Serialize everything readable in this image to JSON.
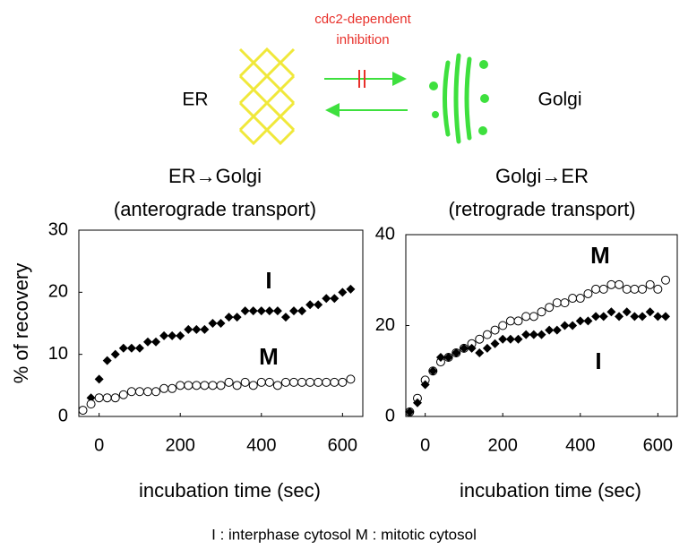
{
  "diagram": {
    "inhibition": [
      "cdc2-dependent",
      "inhibition"
    ],
    "left": "ER",
    "right": "Golgi"
  },
  "caption": "I : interphase cytosol  M : mitotic cytosol",
  "chart_data": [
    {
      "type": "scatter",
      "title": [
        "ER→Golgi",
        "(anterograde transport)"
      ],
      "x_label": "incubation time (sec)",
      "y_label": "% of recovery",
      "xlim": [
        -50,
        650
      ],
      "xticks": [
        0,
        200,
        400,
        600
      ],
      "ylim": [
        0,
        30
      ],
      "yticks": [
        0,
        10,
        20,
        30
      ],
      "x": [
        -40,
        -20,
        0,
        20,
        40,
        60,
        80,
        100,
        120,
        140,
        160,
        180,
        200,
        220,
        240,
        260,
        280,
        300,
        320,
        340,
        360,
        380,
        400,
        420,
        440,
        460,
        480,
        500,
        520,
        540,
        560,
        580,
        600,
        620
      ],
      "series": [
        {
          "name": "I",
          "color": "#000000",
          "marker": "diamond",
          "values": [
            1,
            3,
            6,
            9,
            10,
            11,
            11,
            11,
            12,
            12,
            13,
            13,
            13,
            14,
            14,
            14,
            15,
            15,
            16,
            16,
            17,
            17,
            17,
            17,
            17,
            16,
            17,
            17,
            18,
            18,
            19,
            19,
            20,
            20.5
          ]
        },
        {
          "name": "M",
          "color": "#000000",
          "marker": "circle",
          "values": [
            1,
            2,
            3,
            3,
            3,
            3.5,
            4,
            4,
            4,
            4,
            4.5,
            4.5,
            5,
            5,
            5,
            5,
            5,
            5,
            5.5,
            5,
            5.5,
            5,
            5.5,
            5.5,
            5,
            5.5,
            5.5,
            5.5,
            5.5,
            5.5,
            5.5,
            5.5,
            5.5,
            6
          ]
        }
      ]
    },
    {
      "type": "scatter",
      "title": [
        "Golgi→ER",
        "(retrograde transport)"
      ],
      "x_label": "incubation time (sec)",
      "xlim": [
        -50,
        650
      ],
      "xticks": [
        0,
        200,
        400,
        600
      ],
      "ylim": [
        0,
        40
      ],
      "yticks": [
        0,
        20,
        40
      ],
      "x": [
        -40,
        -20,
        0,
        20,
        40,
        60,
        80,
        100,
        120,
        140,
        160,
        180,
        200,
        220,
        240,
        260,
        280,
        300,
        320,
        340,
        360,
        380,
        400,
        420,
        440,
        460,
        480,
        500,
        520,
        540,
        560,
        580,
        600,
        620
      ],
      "series": [
        {
          "name": "M",
          "color": "#000000",
          "marker": "circle",
          "values": [
            1,
            4,
            8,
            10,
            12,
            13,
            14,
            15,
            16,
            17,
            18,
            19,
            20,
            21,
            21,
            22,
            22,
            23,
            24,
            25,
            25,
            26,
            26,
            27,
            28,
            28,
            29,
            29,
            28,
            28,
            28,
            29,
            28,
            30
          ]
        },
        {
          "name": "I",
          "color": "#000000",
          "marker": "diamond",
          "values": [
            1,
            3,
            7,
            10,
            13,
            13,
            14,
            15,
            15,
            14,
            15,
            16,
            17,
            17,
            17,
            18,
            18,
            18,
            19,
            19,
            20,
            20,
            21,
            21,
            22,
            22,
            23,
            22,
            23,
            22,
            22,
            23,
            22,
            22
          ]
        }
      ]
    }
  ]
}
